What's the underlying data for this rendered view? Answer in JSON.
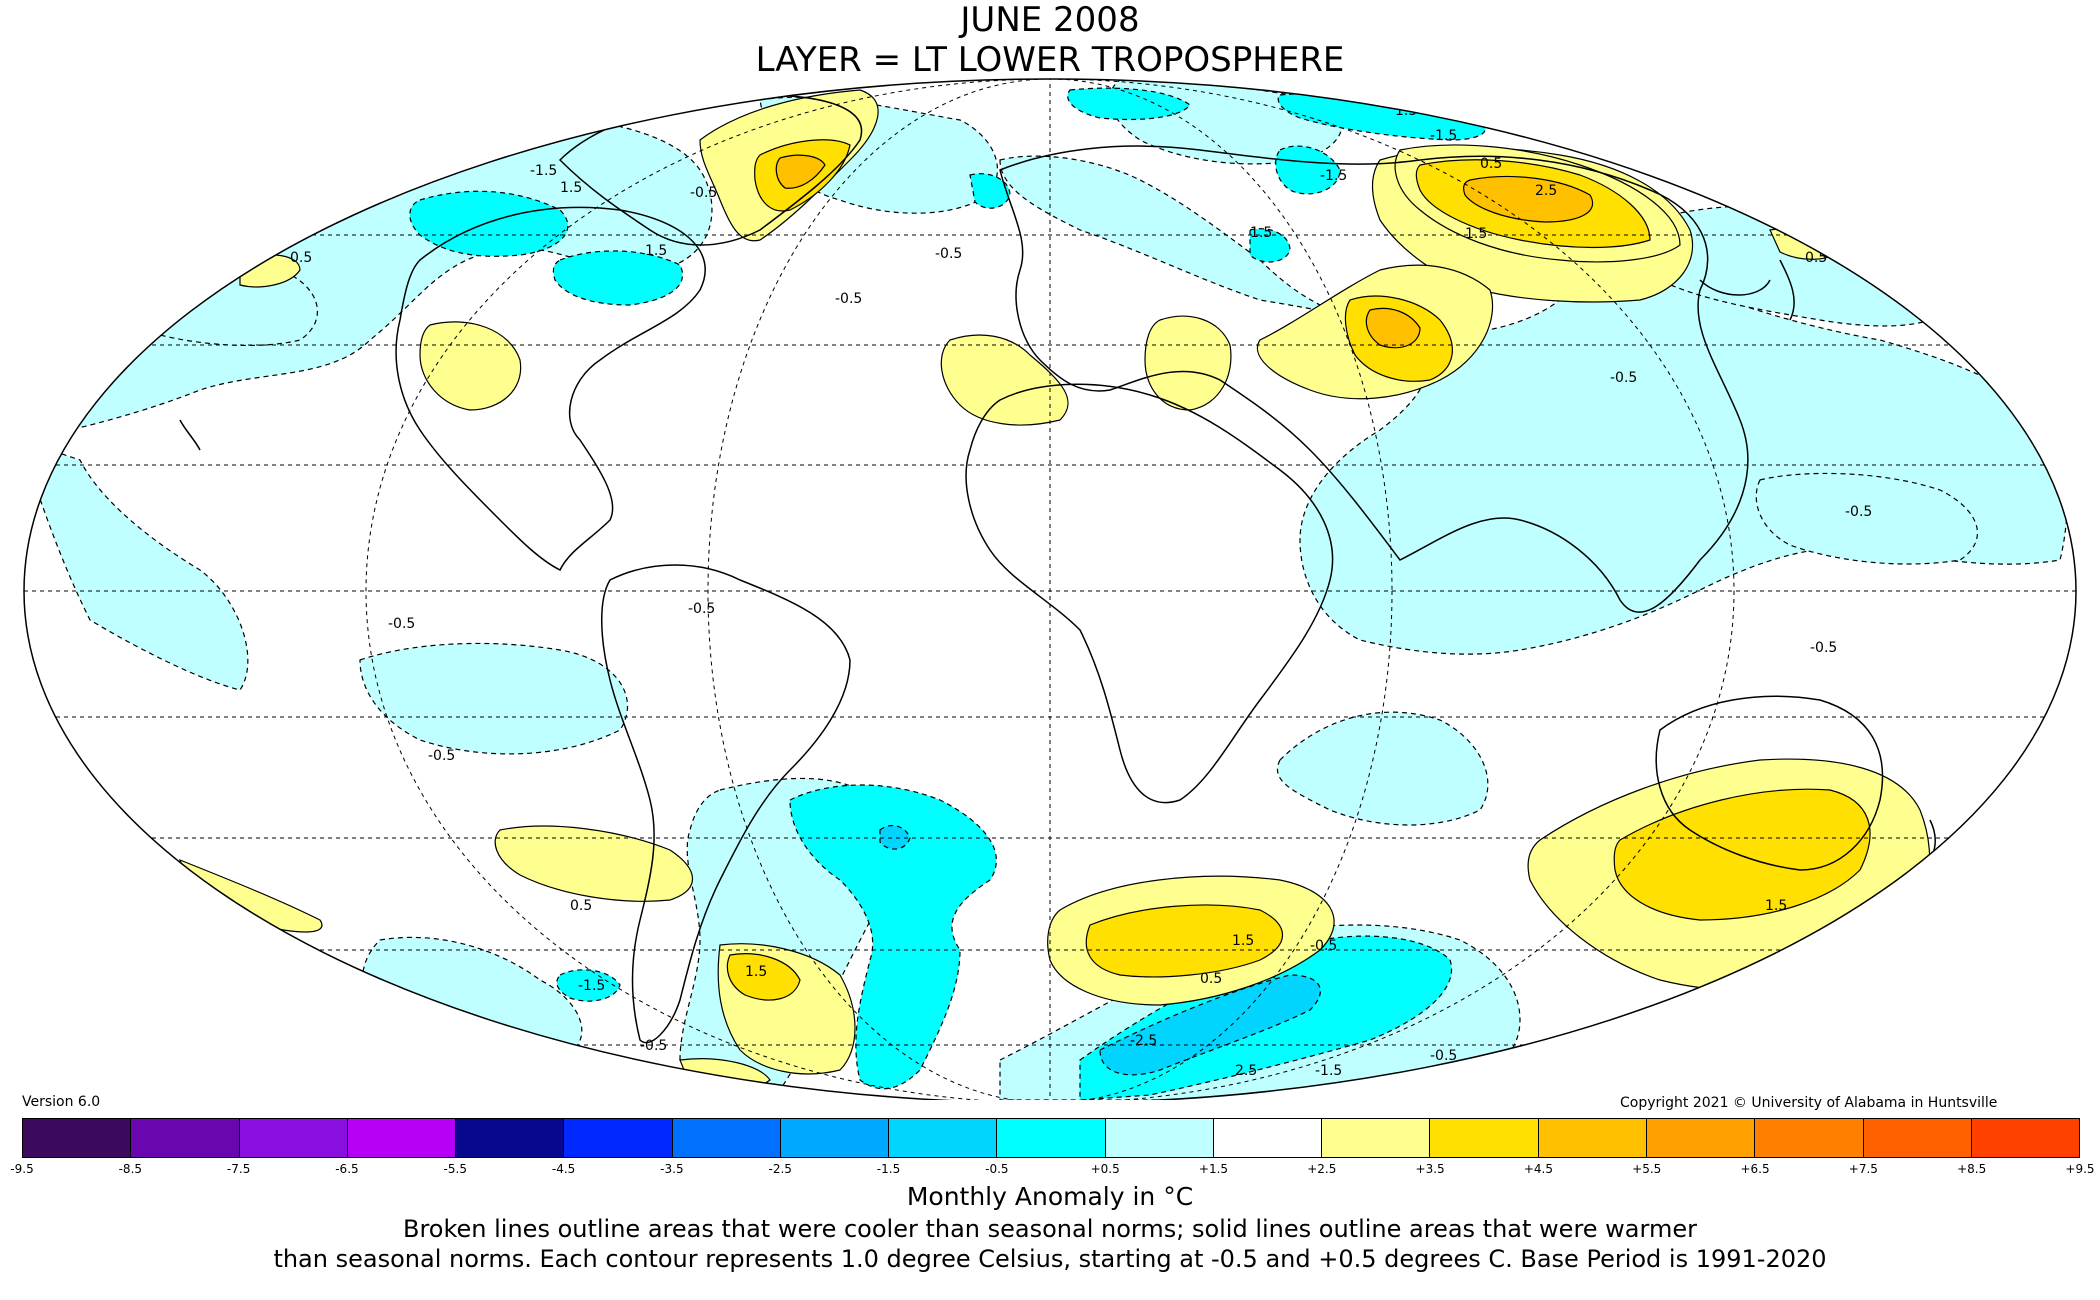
{
  "title": {
    "line1": "JUNE 2008",
    "line2": "LAYER = LT LOWER TROPOSPHERE"
  },
  "version": "Version 6.0",
  "copyright": "Copyright 2021 © University of Alabama in Huntsville",
  "colorbar": {
    "label": "Monthly Anomaly in °C",
    "ticks": [
      "-9.5",
      "-8.5",
      "-7.5",
      "-6.5",
      "-5.5",
      "-4.5",
      "-3.5",
      "-2.5",
      "-1.5",
      "-0.5",
      "+0.5",
      "+1.5",
      "+2.5",
      "+3.5",
      "+4.5",
      "+5.5",
      "+6.5",
      "+7.5",
      "+8.5",
      "+9.5"
    ],
    "colors": [
      "#3b0a5e",
      "#6a06b0",
      "#8a0ee0",
      "#b600f5",
      "#08088f",
      "#0028ff",
      "#0070ff",
      "#00a8ff",
      "#00d4ff",
      "#00ffff",
      "#c0ffff",
      "#ffffff",
      "#ffff90",
      "#ffe000",
      "#ffc000",
      "#ffa000",
      "#ff8000",
      "#ff6000",
      "#ff4000",
      "#e00000",
      "#b00000"
    ]
  },
  "notes": {
    "line1": "Broken lines outline areas that were cooler than seasonal norms; solid lines outline areas that were warmer",
    "line2": "than seasonal norms. Each contour represents 1.0 degree Celsius, starting at -0.5 and +0.5 degrees C. Base Period is 1991-2020"
  },
  "map": {
    "projection": "mollweide",
    "contour_labels": [
      "-1.5",
      "1.5",
      "-0.5",
      "0.5",
      "2.5",
      "-2.5"
    ],
    "colors": {
      "ocean_cool": "#c0ffff",
      "cool_1_5": "#00ffff",
      "cool_2_5": "#00d4ff",
      "warm_0_5": "#ffff90",
      "warm_1_5": "#ffe000",
      "warm_2_5": "#ffc000"
    }
  }
}
